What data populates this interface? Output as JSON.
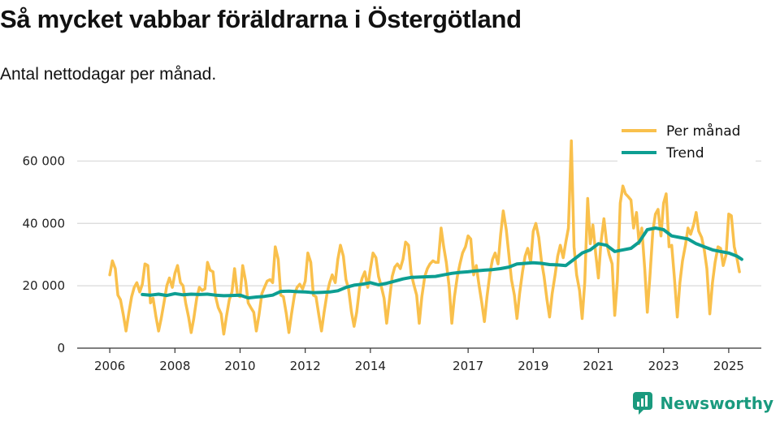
{
  "title": "Så mycket vabbar föräldrarna i Östergötland",
  "subtitle": "Antal nettodagar per månad.",
  "brand": "Newsworthy",
  "colors": {
    "per_manad": "#f9c04c",
    "trend": "#0d9e92",
    "grid": "#d9d9d9",
    "brand": "#1a9a7e",
    "axis": "#333333"
  },
  "chart_data": {
    "type": "line",
    "title": "Så mycket vabbar föräldrarna i Östergötland",
    "subtitle": "Antal nettodagar per månad.",
    "xlabel": "",
    "ylabel": "",
    "xlim": [
      2005.0,
      2026.0
    ],
    "ylim": [
      0,
      70000
    ],
    "yticks": [
      0,
      20000,
      40000,
      60000
    ],
    "ytick_labels": [
      "0",
      "20 000",
      "40 000",
      "60 000"
    ],
    "xticks": [
      2006,
      2008,
      2010,
      2012,
      2014,
      2017,
      2019,
      2021,
      2023,
      2025
    ],
    "xtick_labels": [
      "2006",
      "2008",
      "2010",
      "2012",
      "2014",
      "2017",
      "2019",
      "2021",
      "2023",
      "2025"
    ],
    "grid": true,
    "legend": "top-right",
    "series": [
      {
        "name": "Per månad",
        "color": "#f9c04c",
        "x": [
          2006.0,
          2006.08,
          2006.17,
          2006.25,
          2006.33,
          2006.42,
          2006.5,
          2006.58,
          2006.67,
          2006.75,
          2006.83,
          2006.92,
          2007.0,
          2007.08,
          2007.17,
          2007.25,
          2007.33,
          2007.42,
          2007.5,
          2007.58,
          2007.67,
          2007.75,
          2007.83,
          2007.92,
          2008.0,
          2008.08,
          2008.17,
          2008.25,
          2008.33,
          2008.42,
          2008.5,
          2008.58,
          2008.67,
          2008.75,
          2008.83,
          2008.92,
          2009.0,
          2009.08,
          2009.17,
          2009.25,
          2009.33,
          2009.42,
          2009.5,
          2009.58,
          2009.67,
          2009.75,
          2009.83,
          2009.92,
          2010.0,
          2010.08,
          2010.17,
          2010.25,
          2010.33,
          2010.42,
          2010.5,
          2010.58,
          2010.67,
          2010.75,
          2010.83,
          2010.92,
          2011.0,
          2011.08,
          2011.17,
          2011.25,
          2011.33,
          2011.42,
          2011.5,
          2011.58,
          2011.67,
          2011.75,
          2011.83,
          2011.92,
          2012.0,
          2012.08,
          2012.17,
          2012.25,
          2012.33,
          2012.42,
          2012.5,
          2012.58,
          2012.67,
          2012.75,
          2012.83,
          2012.92,
          2013.0,
          2013.08,
          2013.17,
          2013.25,
          2013.33,
          2013.42,
          2013.5,
          2013.58,
          2013.67,
          2013.75,
          2013.83,
          2013.92,
          2014.0,
          2014.08,
          2014.17,
          2014.25,
          2014.33,
          2014.42,
          2014.5,
          2014.58,
          2014.67,
          2014.75,
          2014.83,
          2014.92,
          2015.0,
          2015.08,
          2015.17,
          2015.25,
          2015.33,
          2015.42,
          2015.5,
          2015.58,
          2015.67,
          2015.75,
          2015.83,
          2015.92,
          2016.0,
          2016.08,
          2016.17,
          2016.25,
          2016.33,
          2016.42,
          2016.5,
          2016.58,
          2016.67,
          2016.75,
          2016.83,
          2016.92,
          2017.0,
          2017.08,
          2017.17,
          2017.25,
          2017.33,
          2017.42,
          2017.5,
          2017.58,
          2017.67,
          2017.75,
          2017.83,
          2017.92,
          2018.0,
          2018.08,
          2018.17,
          2018.25,
          2018.33,
          2018.42,
          2018.5,
          2018.58,
          2018.67,
          2018.75,
          2018.83,
          2018.92,
          2019.0,
          2019.08,
          2019.17,
          2019.25,
          2019.33,
          2019.42,
          2019.5,
          2019.58,
          2019.67,
          2019.75,
          2019.83,
          2019.92,
          2020.0,
          2020.08,
          2020.17,
          2020.25,
          2020.33,
          2020.42,
          2020.5,
          2020.58,
          2020.67,
          2020.75,
          2020.83,
          2020.92,
          2021.0,
          2021.08,
          2021.17,
          2021.25,
          2021.33,
          2021.42,
          2021.5,
          2021.58,
          2021.67,
          2021.75,
          2021.83,
          2021.92,
          2022.0,
          2022.08,
          2022.17,
          2022.25,
          2022.33,
          2022.42,
          2022.5,
          2022.58,
          2022.67,
          2022.75,
          2022.83,
          2022.92,
          2023.0,
          2023.08,
          2023.17,
          2023.25,
          2023.33,
          2023.42,
          2023.5,
          2023.58,
          2023.67,
          2023.75,
          2023.83,
          2023.92,
          2024.0,
          2024.08,
          2024.17,
          2024.25,
          2024.33,
          2024.42,
          2024.5,
          2024.58,
          2024.67,
          2024.75,
          2024.83,
          2024.92,
          2025.0,
          2025.08,
          2025.17,
          2025.25,
          2025.33
        ],
        "values": [
          23500,
          28000,
          25500,
          17000,
          15500,
          10500,
          5500,
          11000,
          16500,
          19500,
          21000,
          18000,
          20500,
          27000,
          26500,
          14500,
          16000,
          10000,
          5500,
          9500,
          15000,
          20000,
          22500,
          19500,
          24000,
          26500,
          21000,
          20000,
          14500,
          10000,
          5000,
          9500,
          16000,
          19500,
          18500,
          19000,
          27500,
          25000,
          24500,
          16500,
          13000,
          11000,
          4500,
          10000,
          15500,
          18000,
          25500,
          17000,
          16500,
          26500,
          21500,
          14500,
          13000,
          11500,
          5500,
          10500,
          17500,
          19500,
          21500,
          22000,
          21000,
          32500,
          28500,
          17000,
          16500,
          11000,
          5000,
          11000,
          17000,
          19500,
          20500,
          19000,
          21500,
          30500,
          27500,
          17000,
          16500,
          10500,
          5500,
          11500,
          17500,
          21000,
          23500,
          21000,
          28500,
          33000,
          29500,
          22000,
          19000,
          11500,
          7000,
          11500,
          19500,
          22500,
          24500,
          19500,
          25500,
          30500,
          29000,
          23000,
          20000,
          16000,
          8000,
          15000,
          23000,
          26000,
          27000,
          25500,
          28500,
          34000,
          33000,
          24000,
          20500,
          17000,
          8000,
          16500,
          23000,
          25500,
          27000,
          28000,
          27500,
          27500,
          38500,
          32500,
          27500,
          19500,
          8000,
          16500,
          23000,
          27000,
          30500,
          32500,
          36000,
          35000,
          23500,
          26500,
          20500,
          14500,
          8500,
          16500,
          24000,
          28500,
          30500,
          27000,
          36500,
          44000,
          38000,
          30000,
          22000,
          17000,
          9500,
          17500,
          24500,
          29500,
          32000,
          27500,
          37500,
          40000,
          35500,
          28000,
          23000,
          15500,
          10000,
          17500,
          23500,
          29500,
          33000,
          29000,
          34000,
          38500,
          66500,
          32500,
          23500,
          18500,
          9500,
          21000,
          48000,
          33500,
          39500,
          30000,
          22500,
          34000,
          41500,
          34000,
          30000,
          27000,
          10500,
          21500,
          46500,
          52000,
          49500,
          48500,
          47500,
          38500,
          43500,
          33500,
          38500,
          25500,
          11500,
          23000,
          37500,
          43000,
          44500,
          36000,
          46500,
          49500,
          32500,
          33000,
          23000,
          10000,
          21000,
          28000,
          33000,
          38500,
          36500,
          39500,
          43500,
          37500,
          35500,
          31500,
          25500,
          11000,
          21000,
          27500,
          32500,
          32000,
          26500,
          30000,
          43000,
          42500,
          32500,
          29000,
          24500
        ]
      },
      {
        "name": "Trend",
        "color": "#0d9e92",
        "x": [
          2007.0,
          2007.25,
          2007.5,
          2007.75,
          2008.0,
          2008.25,
          2008.5,
          2008.75,
          2009.0,
          2009.25,
          2009.5,
          2009.75,
          2010.0,
          2010.25,
          2010.5,
          2010.75,
          2011.0,
          2011.25,
          2011.5,
          2011.75,
          2012.0,
          2012.25,
          2012.5,
          2012.75,
          2013.0,
          2013.25,
          2013.5,
          2013.75,
          2014.0,
          2014.25,
          2014.5,
          2014.75,
          2015.0,
          2015.25,
          2015.5,
          2015.75,
          2016.0,
          2016.25,
          2016.5,
          2016.75,
          2017.0,
          2017.25,
          2017.5,
          2017.75,
          2018.0,
          2018.25,
          2018.5,
          2018.75,
          2019.0,
          2019.25,
          2019.5,
          2019.75,
          2020.0,
          2020.25,
          2020.5,
          2020.75,
          2021.0,
          2021.25,
          2021.5,
          2021.75,
          2022.0,
          2022.25,
          2022.5,
          2022.75,
          2023.0,
          2023.25,
          2023.5,
          2023.75,
          2024.0,
          2024.25,
          2024.5,
          2024.75,
          2025.0,
          2025.25,
          2025.4
        ],
        "values": [
          17200,
          17000,
          17300,
          16900,
          17500,
          17100,
          17300,
          17200,
          17300,
          17000,
          16800,
          16900,
          17000,
          16100,
          16400,
          16600,
          17000,
          18200,
          18300,
          18100,
          18000,
          17800,
          17900,
          18000,
          18400,
          19500,
          20200,
          20500,
          21000,
          20300,
          20800,
          21500,
          22200,
          22700,
          22800,
          22900,
          23000,
          23500,
          24000,
          24300,
          24500,
          24800,
          25000,
          25200,
          25500,
          26000,
          27000,
          27200,
          27400,
          27200,
          26800,
          26700,
          26500,
          28500,
          30500,
          31500,
          33500,
          33000,
          31000,
          31500,
          32000,
          34000,
          38000,
          38500,
          38000,
          36000,
          35500,
          35000,
          33500,
          32500,
          31500,
          31000,
          30500,
          29500,
          28500
        ]
      }
    ]
  }
}
